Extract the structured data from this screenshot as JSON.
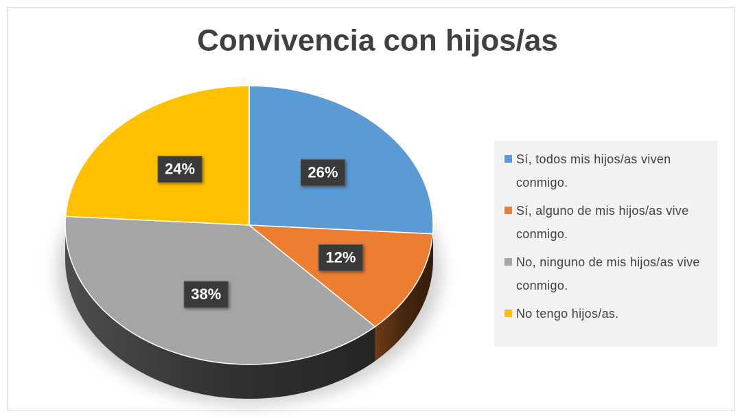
{
  "chart_data": {
    "type": "pie",
    "title": "Convivencia con hijos/as",
    "categories": [
      "Sí, todos mis hijos/as viven conmigo.",
      "Sí, alguno de mis hijos/as vive conmigo.",
      "No, ninguno de mis hijos/as vive conmigo.",
      "No tengo hijos/as."
    ],
    "values": [
      26,
      12,
      38,
      24
    ],
    "value_labels": [
      "26%",
      "12%",
      "38%",
      "24%"
    ],
    "colors": [
      "#5b9bd5",
      "#ed7d31",
      "#a5a5a5",
      "#ffc000"
    ],
    "legend": "right"
  }
}
